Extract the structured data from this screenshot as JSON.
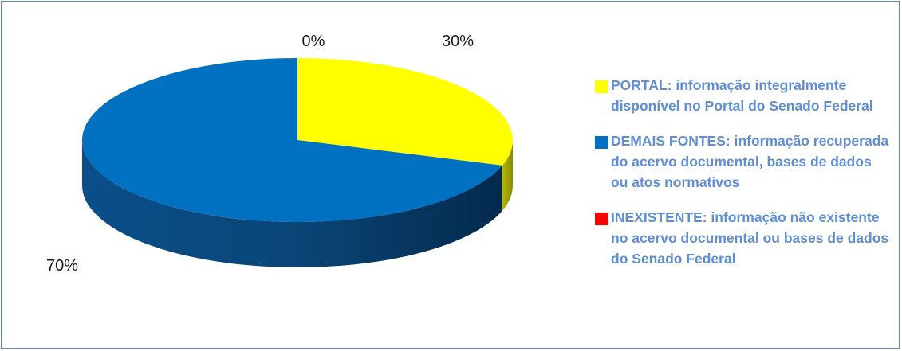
{
  "chart_data": {
    "type": "pie",
    "style": "3d-tilted",
    "slices": [
      {
        "legend": "PORTAL: informação integralmente disponível no Portal do Senado Federal",
        "value": 30,
        "label": "30%",
        "color": "#ffff00"
      },
      {
        "legend": "DEMAIS FONTES: informação recuperada do acervo documental, bases de dados ou atos normativos",
        "value": 70,
        "label": "70%",
        "color": "#0070c0"
      },
      {
        "legend": "INEXISTENTE: informação não existente no acervo documental ou bases de dados do Senado Federal",
        "value": 0,
        "label": "0%",
        "color": "#ff0000"
      }
    ],
    "legend_placement": "right"
  },
  "colors": {
    "legend_text": "#5f8fd2",
    "frame_border": "#5b86bd"
  }
}
